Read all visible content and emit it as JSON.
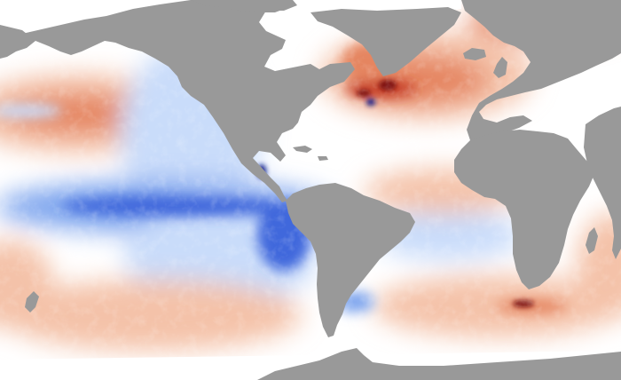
{
  "map": {
    "type": "sea-surface-temperature-anomaly",
    "projection": "equirectangular",
    "colors": {
      "land": "#999999",
      "ice": "#ffffff",
      "neutral_ocean": "#ffffff",
      "warm_light": "#f4c2a9",
      "warm": "#e58560",
      "warm_strong": "#c63c26",
      "warm_extreme": "#7a0f0b",
      "cool_light": "#c9dcfa",
      "cool": "#7fa6ee",
      "cool_strong": "#3f68dc",
      "cool_extreme": "#0a1e8c"
    },
    "regions": {
      "land_features": [
        "north-america",
        "south-america",
        "greenland",
        "europe",
        "africa",
        "asia",
        "antarctica"
      ],
      "anomaly_areas": [
        {
          "name": "north-pacific",
          "sign": "warm"
        },
        {
          "name": "eastern-pacific",
          "sign": "cool"
        },
        {
          "name": "equatorial-pacific",
          "sign": "cool"
        },
        {
          "name": "north-atlantic",
          "sign": "warm"
        },
        {
          "name": "south-atlantic",
          "sign": "cool"
        },
        {
          "name": "southern-ocean",
          "sign": "warm"
        },
        {
          "name": "central-america-coast",
          "sign": "cool"
        },
        {
          "name": "nordic-seas",
          "sign": "warm"
        }
      ]
    }
  }
}
